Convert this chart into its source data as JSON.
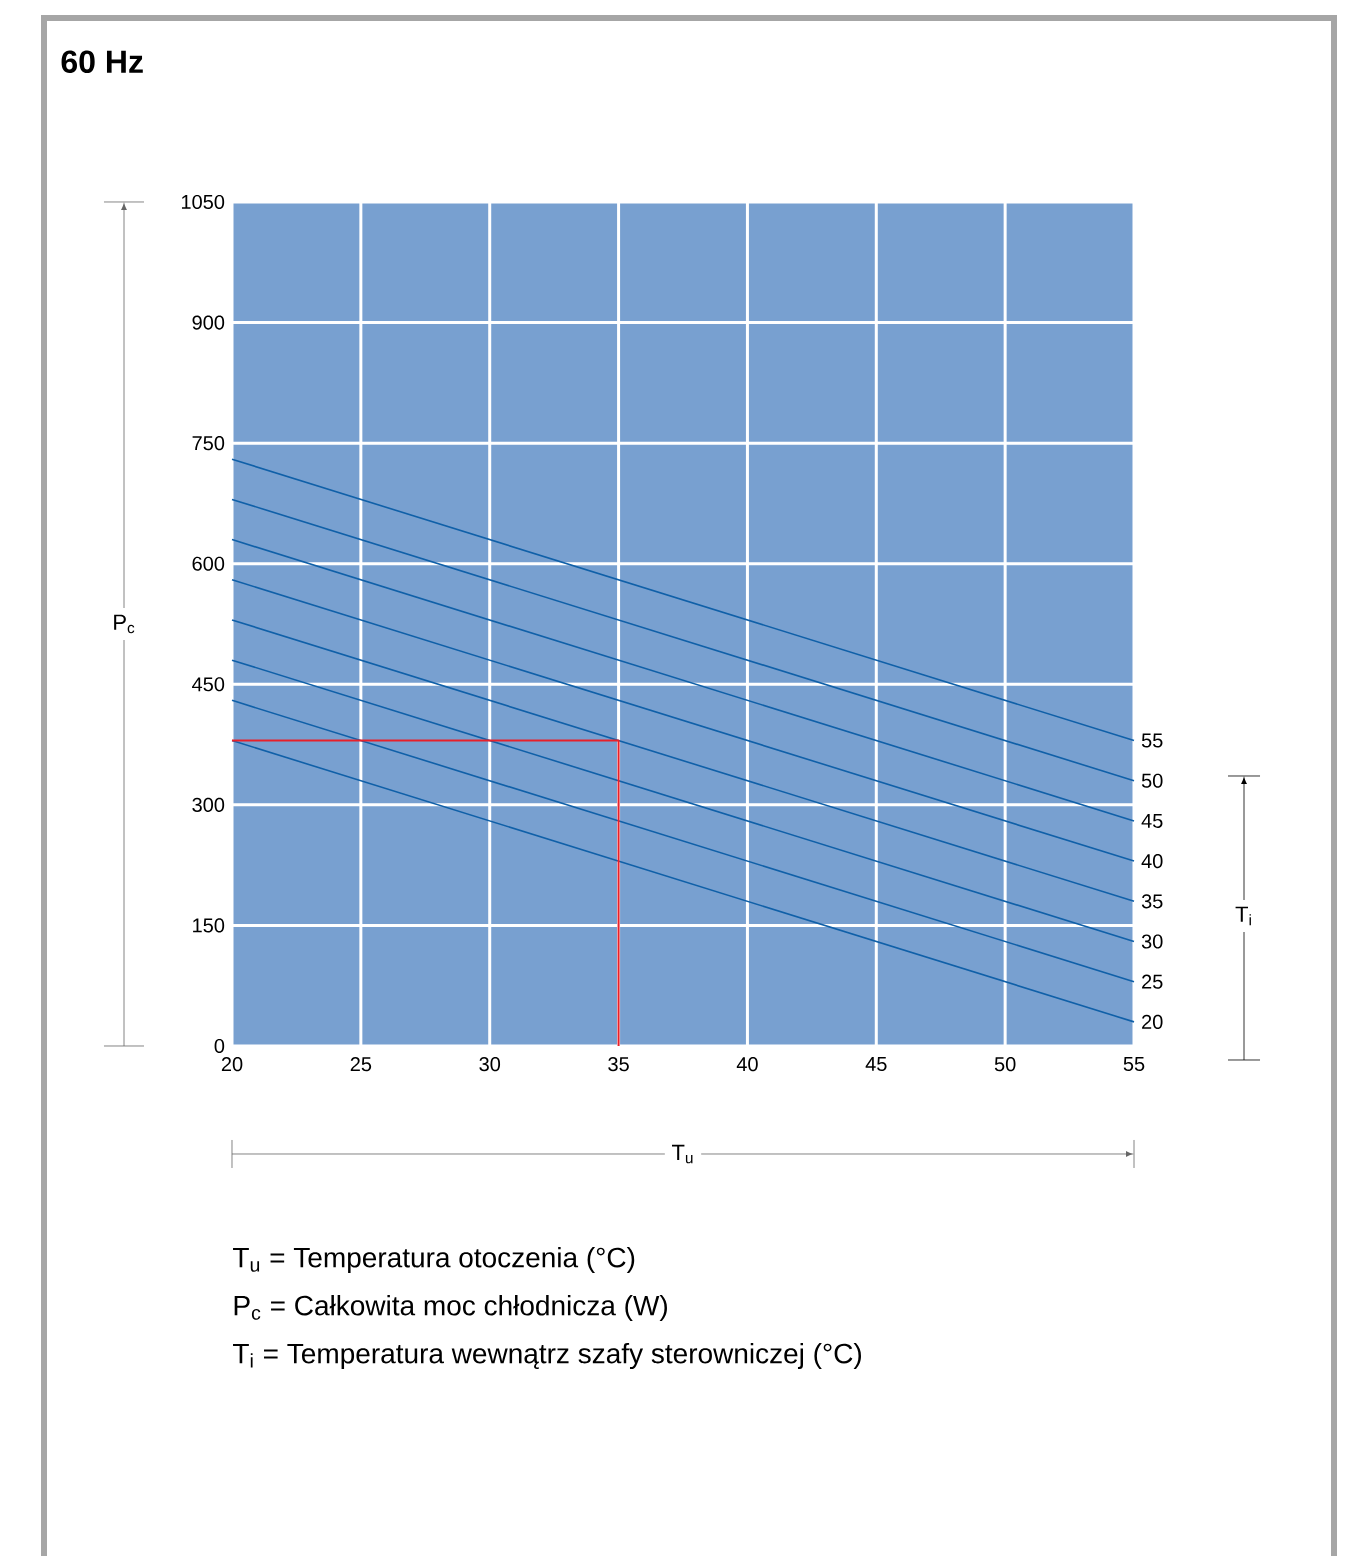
{
  "chart_data": {
    "type": "line",
    "title": "60 Hz",
    "xlabel": "T$_{u}$",
    "ylabel": "P$_{c}$",
    "legend_title": "T$_{i}$",
    "xlim": [
      20,
      55
    ],
    "ylim": [
      0,
      1050
    ],
    "xticks": [
      20,
      25,
      30,
      35,
      40,
      45,
      50,
      55
    ],
    "yticks": [
      0,
      150,
      300,
      450,
      600,
      750,
      900,
      1050
    ],
    "grid": true,
    "series": [
      {
        "name": "55",
        "color": "#1060a8",
        "x": [
          20,
          55
        ],
        "values": [
          730,
          380
        ]
      },
      {
        "name": "50",
        "color": "#1060a8",
        "x": [
          20,
          55
        ],
        "values": [
          680,
          330
        ]
      },
      {
        "name": "45",
        "color": "#1060a8",
        "x": [
          20,
          55
        ],
        "values": [
          630,
          280
        ]
      },
      {
        "name": "40",
        "color": "#1060a8",
        "x": [
          20,
          55
        ],
        "values": [
          580,
          230
        ]
      },
      {
        "name": "35",
        "color": "#1060a8",
        "x": [
          20,
          55
        ],
        "values": [
          530,
          180
        ]
      },
      {
        "name": "30",
        "color": "#1060a8",
        "x": [
          20,
          55
        ],
        "values": [
          480,
          130
        ]
      },
      {
        "name": "25",
        "color": "#1060a8",
        "x": [
          20,
          55
        ],
        "values": [
          430,
          80
        ]
      },
      {
        "name": "20",
        "color": "#1060a8",
        "x": [
          20,
          55
        ],
        "values": [
          380,
          30
        ]
      },
      {
        "type": "line",
        "color": "#e8202a",
        "x": [
          20,
          35,
          35
        ],
        "values": [
          380,
          380,
          0
        ]
      }
    ],
    "annotations": [
      "T$_{u}$  = Temperatura otoczenia (°C)",
      "P$_{c}$  = Całkowita moc chłodnicza (W)",
      "T$_{i}$   = Temperatura wewnątrz szafy sterowniczej (°C)"
    ]
  }
}
